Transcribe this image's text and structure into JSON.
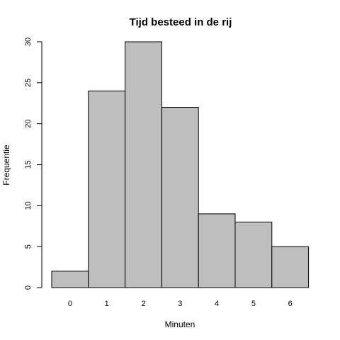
{
  "chart_data": {
    "type": "bar",
    "title": "Tijd besteed in de rij",
    "xlabel": "Minuten",
    "ylabel": "Frequentie",
    "categories": [
      "0",
      "1",
      "2",
      "3",
      "4",
      "5",
      "6"
    ],
    "values": [
      2,
      24,
      30,
      22,
      9,
      8,
      5
    ],
    "ylim": [
      0,
      30
    ],
    "yticks": [
      0,
      5,
      10,
      15,
      20,
      25,
      30
    ],
    "bar_color": "#bebebe",
    "grid": false
  }
}
